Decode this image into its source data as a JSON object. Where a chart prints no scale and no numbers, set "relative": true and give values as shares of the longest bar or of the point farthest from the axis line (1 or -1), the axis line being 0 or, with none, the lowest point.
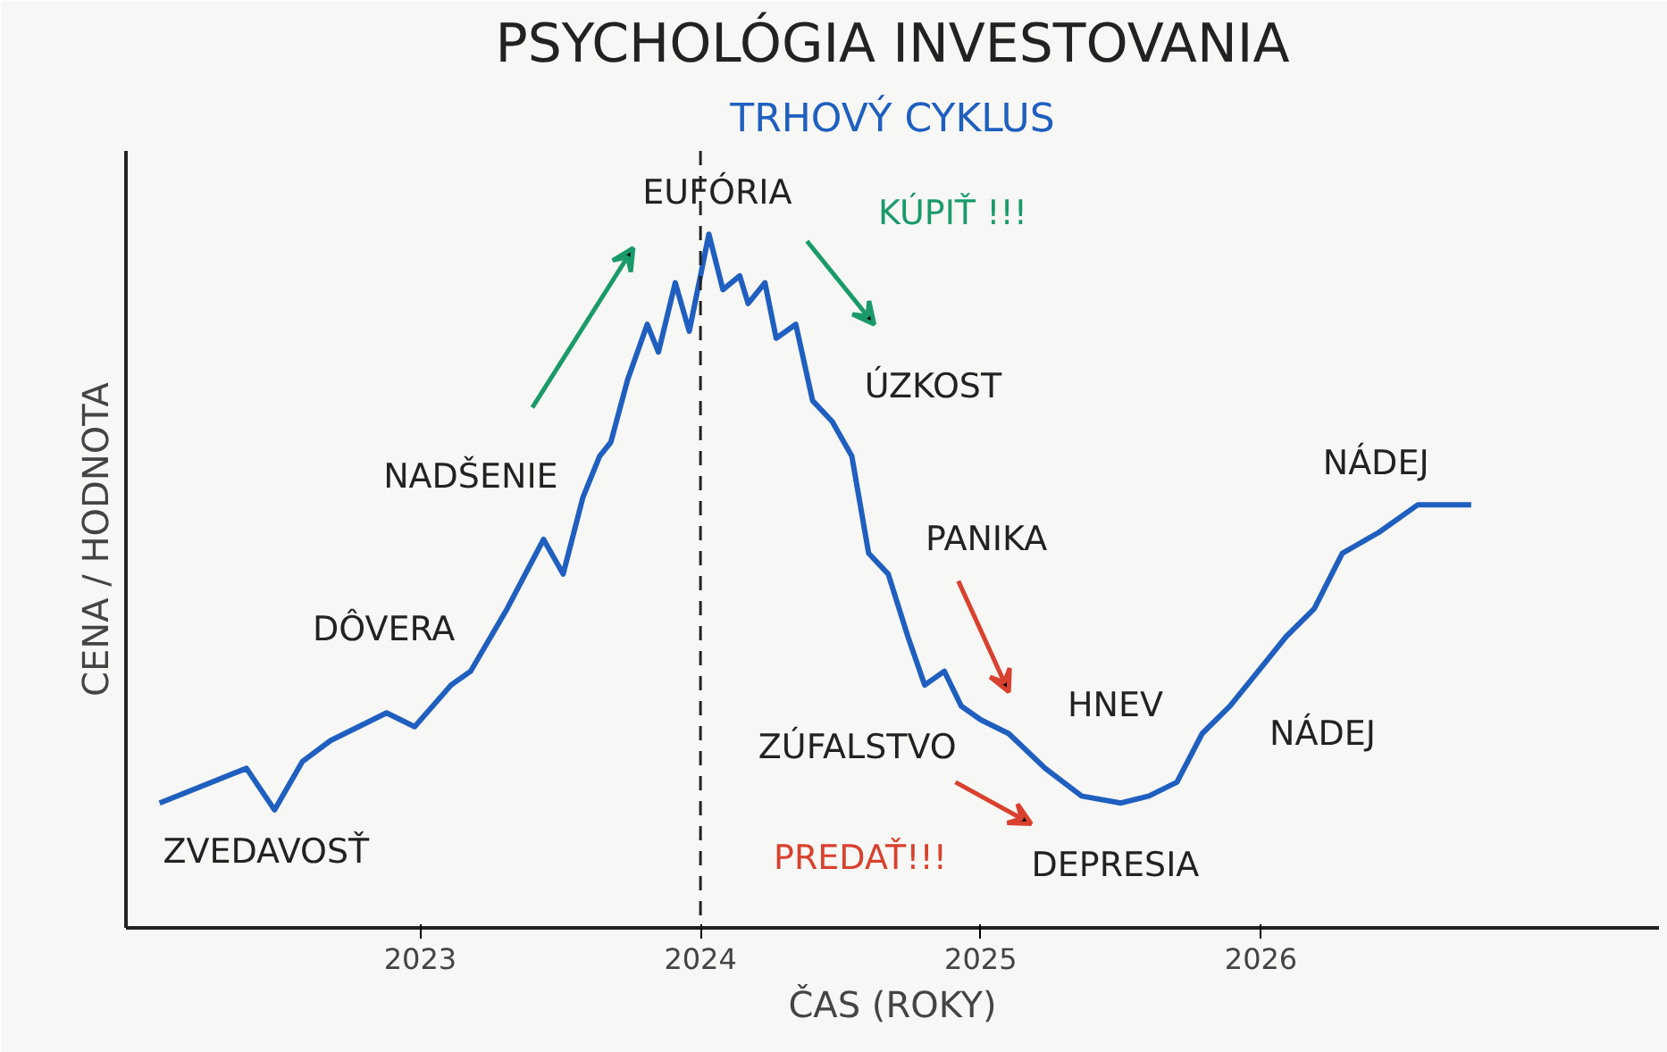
{
  "chart_data": {
    "type": "line",
    "title": "PSYCHOLÓGIA INVESTOVANIA",
    "subtitle": "TRHOVÝ CYKLUS",
    "xlabel": "ČAS (ROKY)",
    "ylabel": "CENA / HODNOTA",
    "relative": true,
    "x": [
      2022.07,
      2022.38,
      2022.48,
      2022.58,
      2022.68,
      2022.88,
      2022.98,
      2023.11,
      2023.18,
      2023.31,
      2023.44,
      2023.51,
      2023.58,
      2023.64,
      2023.68,
      2023.74,
      2023.81,
      2023.85,
      2023.91,
      2023.96,
      2024.03,
      2024.08,
      2024.14,
      2024.17,
      2024.23,
      2024.27,
      2024.34,
      2024.4,
      2024.47,
      2024.54,
      2024.6,
      2024.67,
      2024.74,
      2024.8,
      2024.87,
      2024.93,
      2025.0,
      2025.1,
      2025.23,
      2025.36,
      2025.5,
      2025.6,
      2025.7,
      2025.79,
      2025.89,
      2025.99,
      2026.09,
      2026.19,
      2026.29,
      2026.42,
      2026.56,
      2026.75
    ],
    "series": [
      {
        "color": "#1f5fbf",
        "values": [
          0.18,
          0.23,
          0.17,
          0.24,
          0.27,
          0.31,
          0.29,
          0.35,
          0.37,
          0.46,
          0.56,
          0.51,
          0.62,
          0.68,
          0.7,
          0.79,
          0.87,
          0.83,
          0.93,
          0.86,
          1.0,
          0.92,
          0.94,
          0.9,
          0.93,
          0.85,
          0.87,
          0.76,
          0.73,
          0.68,
          0.54,
          0.51,
          0.42,
          0.35,
          0.37,
          0.32,
          0.3,
          0.28,
          0.23,
          0.19,
          0.18,
          0.19,
          0.21,
          0.28,
          0.32,
          0.37,
          0.42,
          0.46,
          0.54,
          0.57,
          0.61,
          0.61
        ]
      }
    ],
    "xlim": [
      2021.95,
      2027.42
    ],
    "xticks": [
      2023,
      2024,
      2025,
      2026
    ],
    "grid": false,
    "marker": "none",
    "line_style": "solid",
    "ref_lines": [
      {
        "axis": "x",
        "value": 2024,
        "label": null,
        "color": "#222222",
        "line_style": "dashed"
      }
    ],
    "annotations": [
      "ZVEDAVOSŤ",
      "DÔVERA",
      "NADŠENIE",
      "EUFÓRIA",
      "KÚPIŤ !!!",
      "ÚZKOST",
      "PANIKA",
      "HNEV",
      "ZÚFALSTVO",
      "PREDAŤ!!!",
      "DEPRESIA",
      "NÁDEJ",
      "NÁDEJ"
    ]
  }
}
